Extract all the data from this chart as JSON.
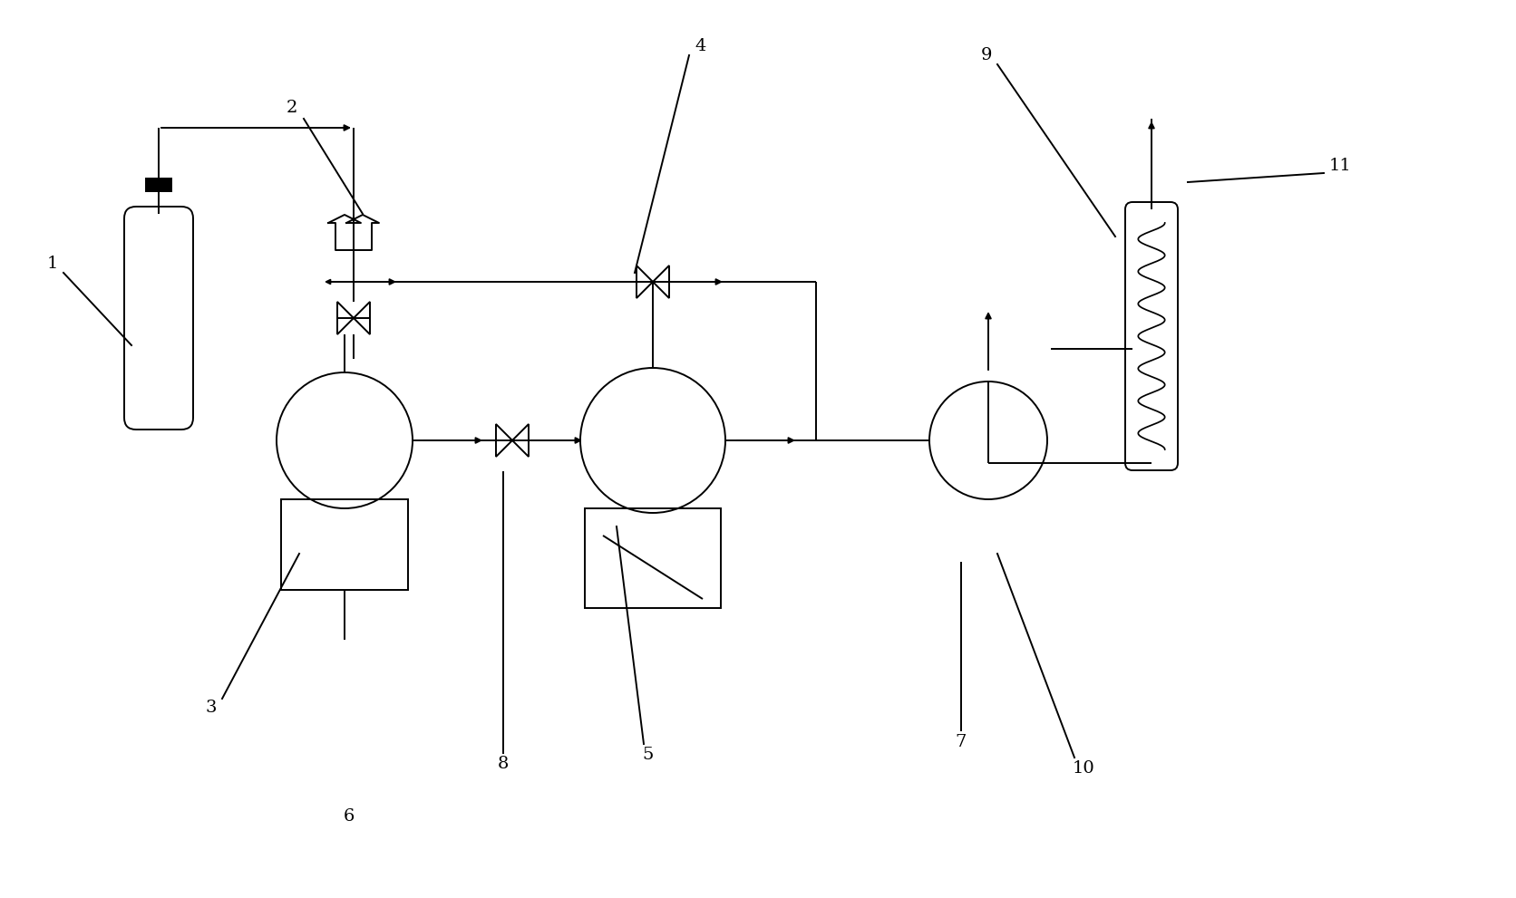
{
  "bg_color": "#ffffff",
  "line_color": "#000000",
  "fig_width": 16.72,
  "fig_height": 9.91,
  "lw": 1.4,
  "fontsize": 14
}
